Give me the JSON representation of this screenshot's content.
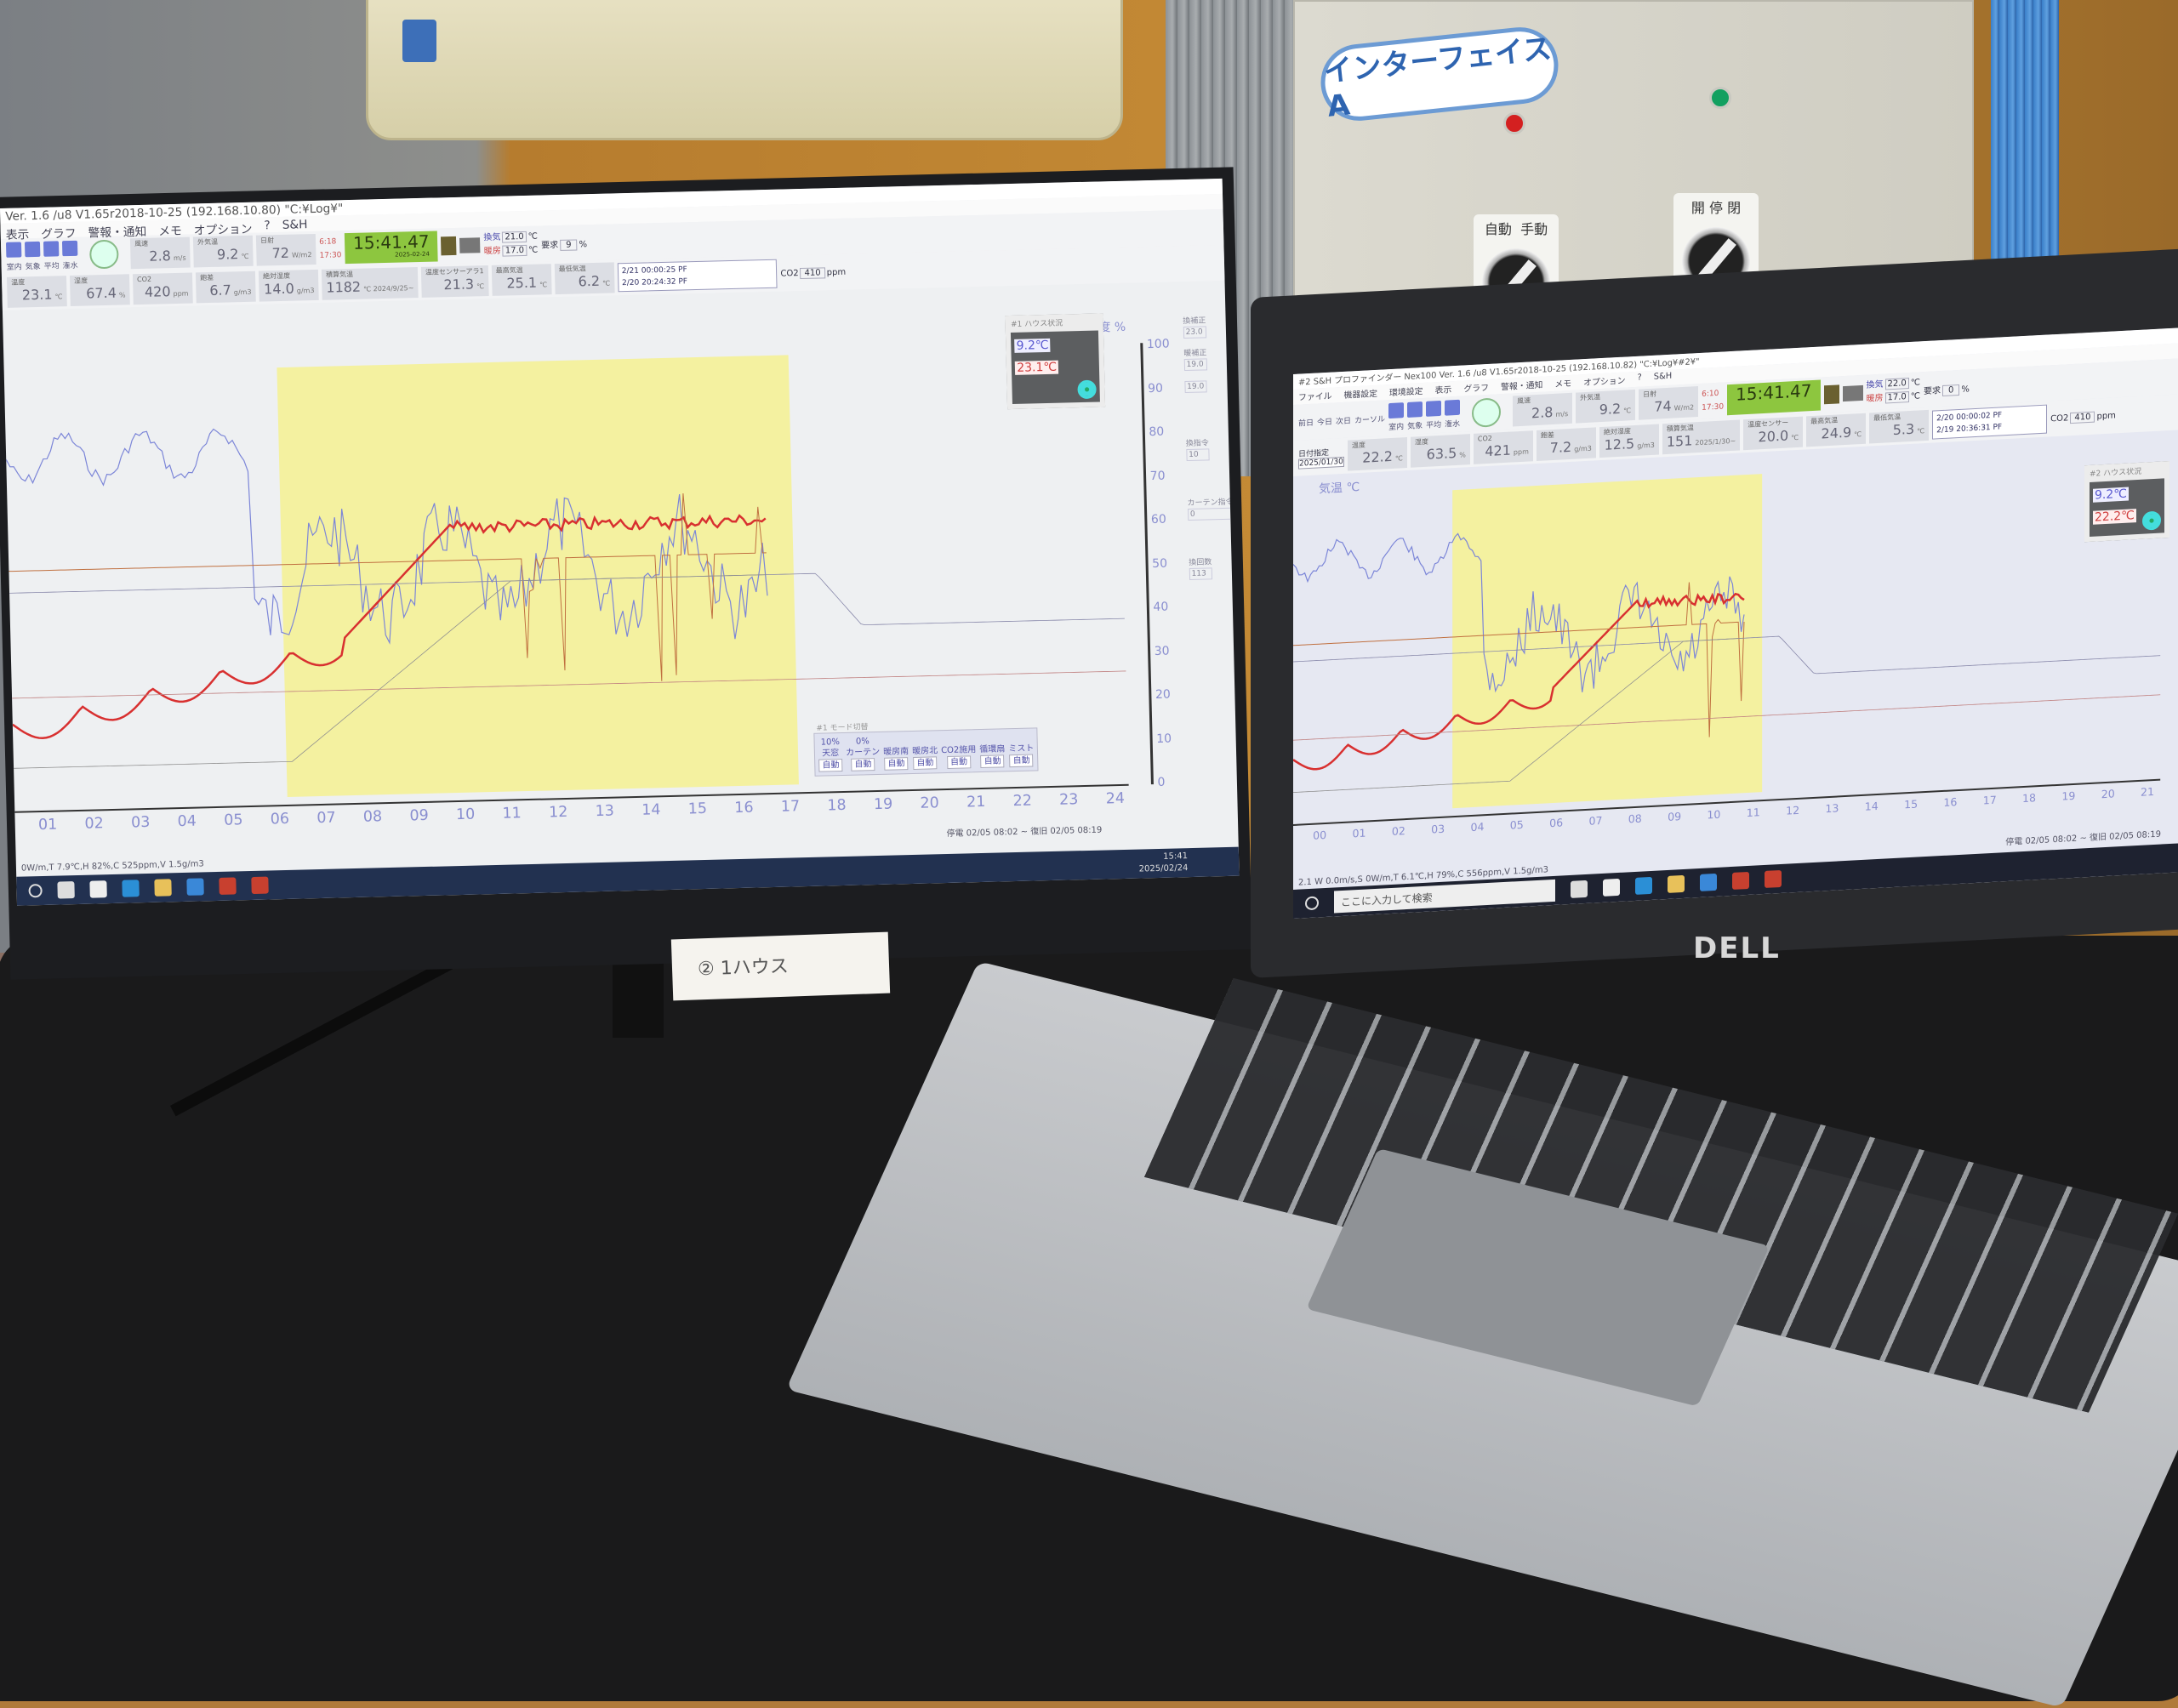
{
  "interface_box": {
    "label": "インターフェイス A",
    "lamps": {
      "left": "#d42020",
      "right": "#12a060"
    },
    "switch1": {
      "left": "自動",
      "right": "手動"
    },
    "switch2": {
      "left": "開",
      "mid": "停",
      "right": "閉"
    }
  },
  "note": {
    "text": "② 1ハウス"
  },
  "monitor": {
    "title": "Ver. 1.6 /u8 V1.65r2018-10-25 (192.168.10.80) \"C:¥Log¥\"",
    "menu": [
      "表示",
      "グラフ",
      "警報・通知",
      "メモ",
      "オプション",
      "?",
      "S&H"
    ],
    "views": [
      "室内",
      "気象",
      "平均",
      "潅水"
    ],
    "weather": [
      {
        "label": "風速",
        "value": "2.8",
        "unit": "m/s"
      },
      {
        "label": "外気温",
        "value": "9.2",
        "unit": "℃"
      },
      {
        "label": "日射",
        "value": "72",
        "unit": "W/m2"
      }
    ],
    "sunrise": "6:18",
    "sunset": "17:30",
    "clock": "15:41.47",
    "clock_date": "2025-02-24",
    "vent": {
      "label": "換気",
      "value": "21.0",
      "unit": "℃"
    },
    "request": {
      "label": "要求",
      "value": "9",
      "unit": "%"
    },
    "heat": {
      "label": "暖房",
      "value": "17.0",
      "unit": "℃"
    },
    "readings": [
      {
        "label": "温度",
        "value": "23.1",
        "unit": "℃"
      },
      {
        "label": "湿度",
        "value": "67.4",
        "unit": "%"
      },
      {
        "label": "CO2",
        "value": "420",
        "unit": "ppm"
      },
      {
        "label": "飽差",
        "value": "6.7",
        "unit": "g/m3"
      },
      {
        "label": "絶対湿度",
        "value": "14.0",
        "unit": "g/m3"
      },
      {
        "label": "積算気温",
        "value": "1182",
        "unit": "℃ 2024/9/25~"
      },
      {
        "label": "温度センサーアラ1",
        "value": "21.3",
        "unit": "℃"
      },
      {
        "label": "最高気温",
        "value": "25.1",
        "unit": "℃"
      },
      {
        "label": "最低気温",
        "value": "6.2",
        "unit": "℃"
      }
    ],
    "log": [
      "2/21 00:00:25  PF",
      "2/20 20:24:32  PF"
    ],
    "co2_set": {
      "label": "CO2",
      "value": "410",
      "unit": "ppm"
    },
    "right_axis_title": "湿度 %",
    "right_axis": [
      "100",
      "90",
      "80",
      "70",
      "60",
      "50",
      "40",
      "30",
      "20",
      "10",
      "0"
    ],
    "side": [
      {
        "label": "換補正",
        "value": "23.0"
      },
      {
        "label": "暖補正",
        "value": "19.0"
      },
      {
        "label": "",
        "value": "19.0"
      },
      {
        "label": "換指令",
        "value": "10"
      },
      {
        "label": "カーテン指令",
        "value": "0"
      },
      {
        "label": "換回数",
        "value": "113"
      }
    ],
    "house": {
      "title": "#1 ハウス状況",
      "outside": "9.2℃",
      "inside": "23.1℃"
    },
    "mode": {
      "title": "#1 モード切替",
      "items": [
        {
          "label": "天窓",
          "pct": "10%",
          "value": "自動"
        },
        {
          "label": "カーテン",
          "pct": "0%",
          "value": "自動"
        },
        {
          "label": "暖房南",
          "value": "自動"
        },
        {
          "label": "暖房北",
          "value": "自動"
        },
        {
          "label": "CO2施用",
          "value": "自動"
        },
        {
          "label": "循環扇",
          "value": "自動"
        },
        {
          "label": "ミスト",
          "value": "自動"
        }
      ]
    },
    "hours": [
      "01",
      "02",
      "03",
      "04",
      "05",
      "06",
      "07",
      "08",
      "09",
      "10",
      "11",
      "12",
      "13",
      "14",
      "15",
      "16",
      "17",
      "18",
      "19",
      "20",
      "21",
      "22",
      "23",
      "24"
    ],
    "outage": "停電 02/05 08:02 ~ 復旧 02/05 08:19",
    "status": "0W/m,T 7.9℃,H 82%,C 525ppm,V 1.5g/m3",
    "tray_time": "15:41",
    "tray_date": "2025/02/24",
    "buttons": [
      "M",
      "▼",
      "▲",
      "E",
      "⏻"
    ]
  },
  "laptop": {
    "brand": "DELL",
    "title": "#2 S&H プロファインダー Nex100 Ver. 1.6 /u8 V1.65r2018-10-25 (192.168.10.82) \"C:¥Log¥#2¥\"",
    "menu": [
      "ファイル",
      "機器設定",
      "環境設定",
      "表示",
      "グラフ",
      "警報・通知",
      "メモ",
      "オプション",
      "?",
      "S&H"
    ],
    "nav": [
      "前日",
      "今日",
      "次日",
      "カーソル"
    ],
    "views": [
      "室内",
      "気象",
      "平均",
      "潅水"
    ],
    "date_label": "日付指定",
    "date": "2025/01/30",
    "weather": [
      {
        "label": "風速",
        "value": "2.8",
        "unit": "m/s"
      },
      {
        "label": "外気温",
        "value": "9.2",
        "unit": "℃"
      },
      {
        "label": "日射",
        "value": "74",
        "unit": "W/m2"
      }
    ],
    "sunrise": "6:10",
    "sunset": "17:30",
    "clock": "15:41.47",
    "vent": {
      "label": "換気",
      "value": "22.0",
      "unit": "℃"
    },
    "request": {
      "label": "要求",
      "value": "0",
      "unit": "%"
    },
    "heat": {
      "label": "暖房",
      "value": "17.0",
      "unit": "℃"
    },
    "readings": [
      {
        "label": "温度",
        "value": "22.2",
        "unit": "℃"
      },
      {
        "label": "湿度",
        "value": "63.5",
        "unit": "%"
      },
      {
        "label": "CO2",
        "value": "421",
        "unit": "ppm"
      },
      {
        "label": "飽差",
        "value": "7.2",
        "unit": "g/m3"
      },
      {
        "label": "絶対湿度",
        "value": "12.5",
        "unit": "g/m3"
      },
      {
        "label": "積算気温",
        "value": "151",
        "unit": "2025/1/30~"
      },
      {
        "label": "温度センサー",
        "value": "20.0",
        "unit": "℃"
      },
      {
        "label": "最高気温",
        "value": "24.9",
        "unit": "℃"
      },
      {
        "label": "最低気温",
        "value": "5.3",
        "unit": "℃"
      }
    ],
    "log": [
      "2/20 00:00:02  PF",
      "2/19 20:36:31  PF"
    ],
    "co2_set": {
      "label": "CO2",
      "value": "410",
      "unit": "ppm"
    },
    "axis_title": "気温 ℃",
    "house": {
      "title": "#2 ハウス状況",
      "outside": "9.2℃",
      "inside": "22.2℃"
    },
    "hours": [
      "00",
      "01",
      "02",
      "03",
      "04",
      "05",
      "06",
      "07",
      "08",
      "09",
      "10",
      "11",
      "12",
      "13",
      "14",
      "15",
      "16",
      "17",
      "18",
      "19",
      "20",
      "21"
    ],
    "outage": "停電 02/05 08:02 ~ 復旧 02/05 08:19",
    "status": "2.1 W 0.0m/s,S 0W/m,T 6.1℃,H 79%,C 556ppm,V 1.5g/m3",
    "search_placeholder": "ここに入力して検索"
  },
  "colors": {
    "clock_bg": "#8dc63f",
    "highlight": "#f4f1a0",
    "temp_line": "#d83030",
    "humidity_line": "#7c86d8",
    "taskbar": "#223150"
  }
}
